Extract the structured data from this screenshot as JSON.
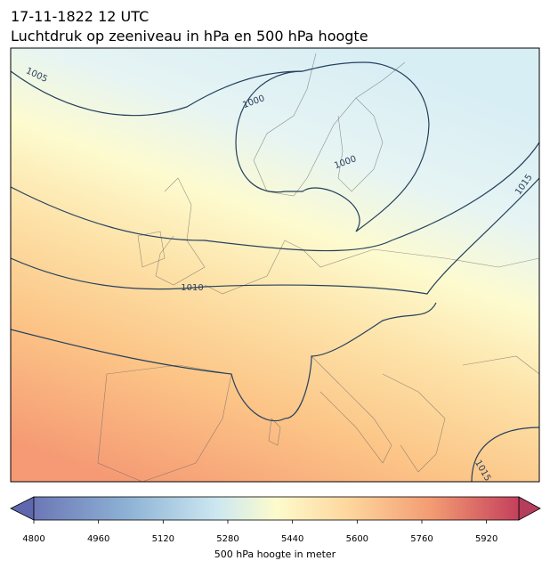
{
  "header": {
    "date": "17-11-1822 12 UTC",
    "title": "Luchtdruk op zeeniveau in hPa en 500 hPa hoogte"
  },
  "map": {
    "contour_labels": [
      "1005",
      "1000",
      "1000",
      "1015",
      "1010",
      "1015"
    ]
  },
  "colorbar": {
    "label": "500 hPa hoogte in meter",
    "lim": [
      4800,
      6000
    ],
    "ticks": [
      4800,
      4960,
      5120,
      5280,
      5440,
      5600,
      5760,
      5920
    ]
  }
}
